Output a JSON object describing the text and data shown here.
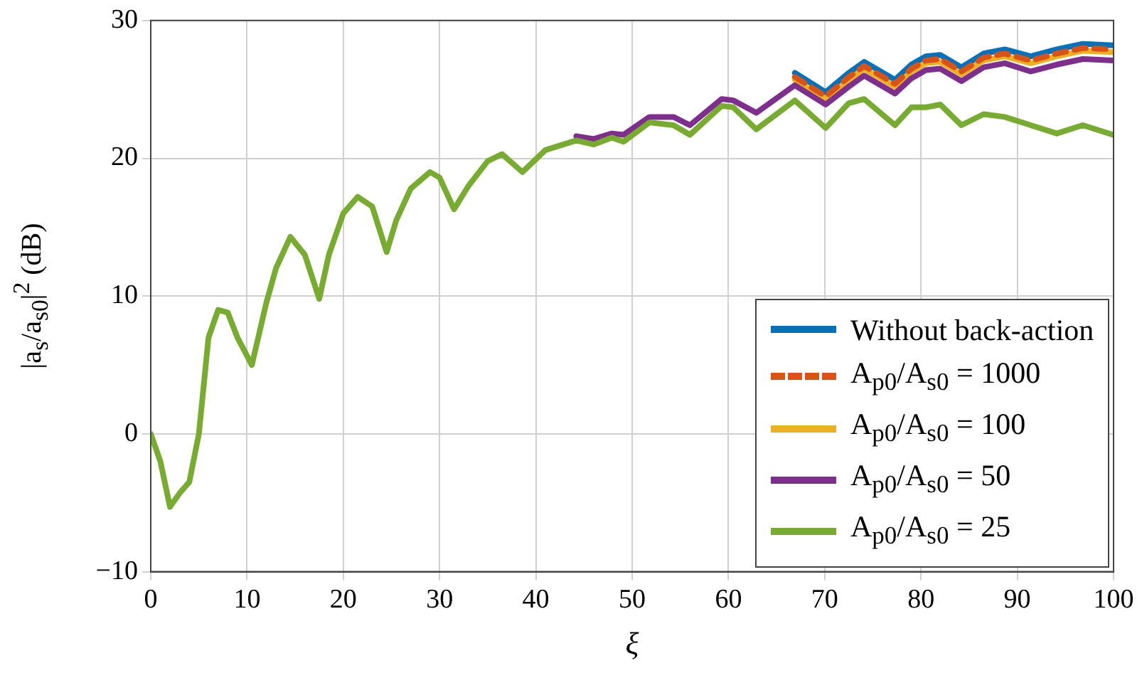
{
  "chart_data": {
    "type": "line",
    "xlabel": "ξ",
    "ylabel": "|a$_{s}$/a$_{s0}$|$^{2}$ (dB)",
    "x": [
      0,
      1,
      2,
      3,
      4,
      5,
      6,
      7,
      8,
      9,
      10.5,
      12,
      13,
      14.5,
      16,
      17.5,
      18.5,
      20,
      21.5,
      23,
      24.5,
      25.5,
      27,
      29,
      30,
      31.5,
      33,
      35,
      36.5,
      38.6,
      41,
      44.2,
      46,
      47.9,
      49.1,
      51.8,
      54.3,
      56,
      59.3,
      60.5,
      62.9,
      66.9,
      70.1,
      72.5,
      74.1,
      77.3,
      79,
      80.5,
      82,
      84.2,
      86.5,
      88.7,
      91.4,
      94.1,
      96.8,
      100
    ],
    "series": [
      {
        "name": "Without back-action",
        "color": "#0072bd",
        "line_style": "solid",
        "values": [
          null,
          null,
          null,
          null,
          null,
          null,
          null,
          null,
          null,
          null,
          null,
          null,
          null,
          null,
          null,
          null,
          null,
          null,
          null,
          null,
          null,
          null,
          null,
          null,
          null,
          null,
          null,
          null,
          null,
          null,
          null,
          null,
          null,
          null,
          null,
          null,
          null,
          null,
          null,
          null,
          null,
          26.2,
          24.8,
          26.2,
          27.0,
          25.7,
          26.8,
          27.4,
          27.5,
          26.6,
          27.6,
          27.9,
          27.4,
          27.9,
          28.3,
          28.2
        ]
      },
      {
        "name": "A$_{p0}$/A$_{s0}$ = 1000",
        "color": "#d95319",
        "line_style": "dashed",
        "values": [
          null,
          null,
          null,
          null,
          null,
          null,
          null,
          null,
          null,
          null,
          null,
          null,
          null,
          null,
          null,
          null,
          null,
          null,
          null,
          null,
          null,
          null,
          null,
          null,
          null,
          null,
          null,
          null,
          null,
          null,
          null,
          null,
          null,
          null,
          null,
          null,
          null,
          null,
          null,
          null,
          null,
          25.9,
          24.5,
          25.9,
          26.7,
          25.4,
          26.5,
          27.1,
          27.2,
          26.3,
          27.3,
          27.6,
          27.1,
          27.6,
          28.0,
          27.9
        ]
      },
      {
        "name": "A$_{p0}$/A$_{s0}$ = 100",
        "color": "#edb120",
        "line_style": "solid",
        "values": [
          null,
          null,
          null,
          null,
          null,
          null,
          null,
          null,
          null,
          null,
          null,
          null,
          null,
          null,
          null,
          null,
          null,
          null,
          null,
          null,
          null,
          null,
          null,
          null,
          null,
          null,
          null,
          null,
          null,
          null,
          null,
          null,
          null,
          null,
          null,
          null,
          null,
          null,
          null,
          null,
          null,
          25.7,
          24.3,
          25.7,
          26.5,
          25.2,
          26.3,
          26.9,
          27.0,
          26.1,
          27.1,
          27.4,
          26.9,
          27.4,
          27.8,
          27.7
        ]
      },
      {
        "name": "A$_{p0}$/A$_{s0}$ = 50",
        "color": "#7e2f8e",
        "line_style": "solid",
        "values": [
          null,
          null,
          null,
          null,
          null,
          null,
          null,
          null,
          null,
          null,
          null,
          null,
          null,
          null,
          null,
          null,
          null,
          null,
          null,
          null,
          null,
          null,
          null,
          null,
          null,
          null,
          null,
          null,
          null,
          null,
          null,
          21.6,
          21.4,
          21.8,
          21.7,
          23.0,
          23.0,
          22.4,
          24.3,
          24.2,
          23.3,
          25.3,
          23.9,
          25.2,
          26.0,
          24.7,
          25.8,
          26.4,
          26.5,
          25.6,
          26.6,
          26.9,
          26.3,
          26.8,
          27.2,
          27.1
        ]
      },
      {
        "name": "A$_{p0}$/A$_{s0}$ = 25",
        "color": "#77ac30",
        "line_style": "solid",
        "values": [
          0,
          -2,
          -5.3,
          -4.3,
          -3.5,
          0,
          7,
          9,
          8.8,
          7,
          5,
          9.5,
          12,
          14.3,
          13,
          9.8,
          13,
          16,
          17.2,
          16.5,
          13.2,
          15.5,
          17.8,
          19,
          18.6,
          16.3,
          18,
          19.8,
          20.3,
          19,
          20.6,
          21.3,
          21.0,
          21.5,
          21.2,
          22.6,
          22.4,
          21.7,
          23.8,
          23.7,
          22.1,
          24.2,
          22.2,
          24.0,
          24.3,
          22.4,
          23.7,
          23.7,
          23.9,
          22.4,
          23.2,
          23.0,
          22.4,
          21.8,
          22.4,
          21.7
        ]
      }
    ],
    "xlim": [
      0,
      100
    ],
    "xticks": [
      0,
      10,
      20,
      30,
      40,
      50,
      60,
      70,
      80,
      90,
      100
    ],
    "ylim": [
      -10,
      30
    ],
    "yticks": [
      -10,
      0,
      10,
      20,
      30
    ],
    "grid": true,
    "legend": "bottom right",
    "marker": "none"
  }
}
